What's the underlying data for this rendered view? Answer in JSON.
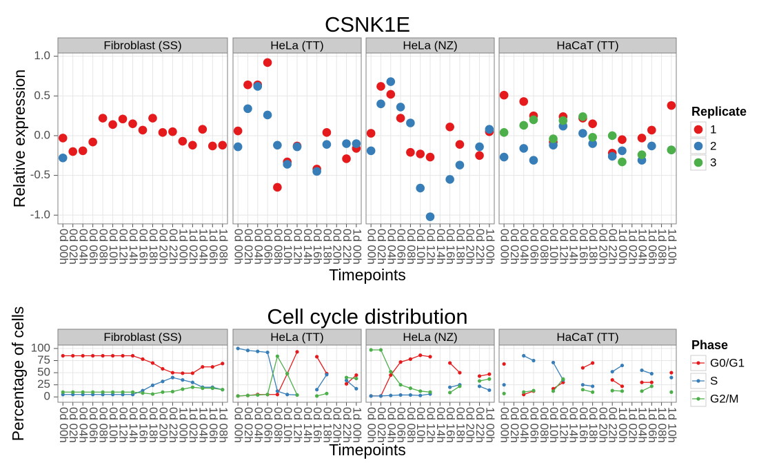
{
  "chart_data": [
    {
      "type": "scatter",
      "title": "CSNK1E",
      "xlabel": "Timepoints",
      "ylabel": "Relative expression",
      "ylim": [
        -1.11,
        1.04
      ],
      "yticks": [
        {
          "value": 1,
          "label": "1.0"
        },
        0.5,
        {
          "value": 0,
          "label": "0.0"
        },
        -0.5,
        {
          "value": -1,
          "label": "-1.0"
        }
      ],
      "grid": true,
      "legend": {
        "title": "Replicate",
        "position": "right"
      },
      "series": [
        {
          "name": "1",
          "color": "#e41a1c"
        },
        {
          "name": "2",
          "color": "#377eb8"
        },
        {
          "name": "3",
          "color": "#4daf4a"
        }
      ],
      "facets": [
        {
          "label": "Fibroblast (SS)",
          "categories": [
            "0d 00h",
            "0d 02h",
            "0d 04h",
            "0d 06h",
            "0d 08h",
            "0d 10h",
            "0d 12h",
            "0d 14h",
            "0d 16h",
            "0d 18h",
            "0d 20h",
            "0d 22h",
            "1d 00h",
            "1d 02h",
            "1d 04h",
            "1d 06h",
            "1d 08h"
          ],
          "values": [
            [
              -0.03,
              -0.2,
              -0.19,
              -0.08,
              0.22,
              0.14,
              0.21,
              0.15,
              0.07,
              0.22,
              0.04,
              0.05,
              -0.07,
              -0.12,
              0.08,
              -0.13,
              -0.12
            ],
            [
              -0.28,
              null,
              null,
              null,
              null,
              null,
              null,
              null,
              null,
              null,
              null,
              null,
              null,
              null,
              null,
              null,
              null
            ],
            [
              null,
              null,
              null,
              null,
              null,
              null,
              null,
              null,
              null,
              null,
              null,
              null,
              null,
              null,
              null,
              null,
              null
            ]
          ]
        },
        {
          "label": "HeLa (TT)",
          "categories": [
            "0d 00h",
            "0d 02h",
            "0d 04h",
            "0d 06h",
            "0d 08h",
            "0d 10h",
            "0d 12h",
            "0d 14h",
            "0d 16h",
            "0d 18h",
            "0d 20h",
            "0d 22h",
            "1d 00h"
          ],
          "values": [
            [
              0.06,
              0.64,
              0.64,
              0.92,
              -0.65,
              -0.33,
              -0.13,
              null,
              -0.42,
              0.04,
              null,
              -0.29,
              -0.16
            ],
            [
              -0.14,
              0.34,
              0.62,
              0.26,
              -0.12,
              -0.36,
              -0.14,
              null,
              -0.45,
              -0.11,
              null,
              -0.1,
              -0.1
            ],
            [
              null,
              null,
              null,
              null,
              null,
              null,
              null,
              null,
              null,
              null,
              null,
              null,
              null
            ]
          ]
        },
        {
          "label": "HeLa (NZ)",
          "categories": [
            "0d 00h",
            "0d 02h",
            "0d 04h",
            "0d 06h",
            "0d 08h",
            "0d 10h",
            "0d 12h",
            "0d 14h",
            "0d 16h",
            "0d 18h",
            "0d 20h",
            "0d 22h",
            "1d 00h"
          ],
          "values": [
            [
              0.03,
              0.62,
              0.52,
              0.22,
              -0.21,
              -0.23,
              -0.27,
              null,
              0.11,
              -0.11,
              null,
              -0.25,
              0.05
            ],
            [
              -0.19,
              0.4,
              0.68,
              0.36,
              0.16,
              -0.66,
              -1.02,
              null,
              -0.55,
              -0.37,
              null,
              -0.14,
              0.08
            ],
            [
              null,
              null,
              null,
              null,
              null,
              null,
              null,
              null,
              null,
              null,
              null,
              null,
              null
            ]
          ]
        },
        {
          "label": "HaCaT (TT)",
          "categories": [
            "0d 00h",
            "0d 02h",
            "0d 04h",
            "0d 06h",
            "0d 08h",
            "0d 10h",
            "0d 12h",
            "0d 14h",
            "0d 16h",
            "0d 18h",
            "0d 20h",
            "0d 22h",
            "1d 00h",
            "1d 02h",
            "1d 04h",
            "1d 06h",
            "1d 08h",
            "1d 10h"
          ],
          "values": [
            [
              0.51,
              null,
              0.43,
              0.25,
              null,
              -0.08,
              0.24,
              null,
              0.22,
              0.15,
              null,
              -0.22,
              -0.05,
              null,
              -0.03,
              0.07,
              null,
              0.38
            ],
            [
              -0.27,
              null,
              -0.16,
              -0.31,
              null,
              -0.12,
              0.12,
              null,
              0.03,
              -0.1,
              null,
              -0.26,
              -0.19,
              null,
              -0.31,
              -0.13,
              null,
              -0.18
            ],
            [
              0.04,
              null,
              0.13,
              0.2,
              null,
              -0.04,
              0.19,
              null,
              0.24,
              -0.02,
              null,
              0,
              -0.33,
              null,
              -0.24,
              null,
              null,
              -0.18
            ]
          ]
        }
      ]
    },
    {
      "type": "line",
      "title": "Cell cycle distribution",
      "xlabel": "Timepoints",
      "ylabel": "Percentage of cells",
      "ylim": [
        -11,
        107
      ],
      "yticks": [
        0,
        25,
        50,
        75,
        100
      ],
      "grid": true,
      "legend": {
        "title": "Phase",
        "position": "right"
      },
      "series": [
        {
          "name": "G0/G1",
          "color": "#e41a1c"
        },
        {
          "name": "S",
          "color": "#377eb8"
        },
        {
          "name": "G2/M",
          "color": "#4daf4a"
        }
      ],
      "facets": [
        {
          "label": "Fibroblast (SS)",
          "categories": [
            "0d 00h",
            "0d 02h",
            "0d 04h",
            "0d 06h",
            "0d 08h",
            "0d 10h",
            "0d 12h",
            "0d 14h",
            "0d 16h",
            "0d 18h",
            "0d 20h",
            "0d 22h",
            "1d 00h",
            "1d 02h",
            "1d 04h",
            "1d 06h",
            "1d 08h"
          ],
          "values": [
            [
              85,
              85,
              85,
              85,
              85,
              85,
              85,
              85,
              78,
              70,
              58,
              50,
              49,
              49,
              62,
              62,
              69
            ],
            [
              5,
              5,
              5,
              5,
              5,
              5,
              5,
              5,
              13,
              24,
              32,
              40,
              35,
              30,
              20,
              20,
              15
            ],
            [
              10,
              10,
              10,
              10,
              10,
              10,
              10,
              10,
              8,
              6,
              10,
              11,
              16,
              20,
              18,
              18,
              15
            ]
          ]
        },
        {
          "label": "HeLa (TT)",
          "categories": [
            "0d 00h",
            "0d 02h",
            "0d 04h",
            "0d 06h",
            "0d 08h",
            "0d 10h",
            "0d 12h",
            "0d 14h",
            "0d 16h",
            "0d 18h",
            "0d 20h",
            "0d 22h",
            "1d 00h"
          ],
          "values": [
            [
              2,
              3,
              5,
              5,
              5,
              48,
              93,
              null,
              83,
              48,
              null,
              27,
              45
            ],
            [
              100,
              96,
              94,
              92,
              12,
              5,
              4,
              null,
              15,
              46,
              null,
              34,
              17
            ],
            [
              2,
              3,
              4,
              5,
              84,
              48,
              4,
              null,
              2,
              7,
              null,
              40,
              38
            ]
          ]
        },
        {
          "label": "HeLa (NZ)",
          "categories": [
            "0d 00h",
            "0d 02h",
            "0d 04h",
            "0d 06h",
            "0d 08h",
            "0d 10h",
            "0d 12h",
            "0d 14h",
            "0d 16h",
            "0d 18h",
            "0d 20h",
            "0d 22h",
            "1d 00h"
          ],
          "values": [
            [
              2,
              2,
              45,
              72,
              78,
              86,
              83,
              null,
              70,
              50,
              null,
              43,
              47
            ],
            [
              2,
              2,
              3,
              4,
              4,
              3,
              6,
              null,
              20,
              25,
              null,
              22,
              14
            ],
            [
              97,
              97,
              52,
              25,
              18,
              12,
              10,
              null,
              9,
              22,
              null,
              33,
              37
            ]
          ]
        },
        {
          "label": "HaCaT (TT)",
          "categories": [
            "0d 00h",
            "0d 02h",
            "0d 04h",
            "0d 06h",
            "0d 08h",
            "0d 10h",
            "0d 12h",
            "0d 14h",
            "0d 16h",
            "0d 18h",
            "0d 20h",
            "0d 22h",
            "1d 00h",
            "1d 02h",
            "1d 04h",
            "1d 06h",
            "1d 08h",
            "1d 10h"
          ],
          "values": [
            [
              68,
              null,
              5,
              12,
              null,
              17,
              30,
              null,
              60,
              70,
              null,
              35,
              22,
              null,
              30,
              30,
              null,
              50
            ],
            [
              25,
              null,
              85,
              75,
              null,
              71,
              35,
              null,
              25,
              22,
              null,
              52,
              65,
              null,
              55,
              48,
              null,
              40
            ],
            [
              7,
              null,
              10,
              13,
              null,
              12,
              37,
              null,
              15,
              10,
              null,
              13,
              12,
              null,
              12,
              22,
              null,
              10
            ]
          ]
        }
      ]
    }
  ]
}
